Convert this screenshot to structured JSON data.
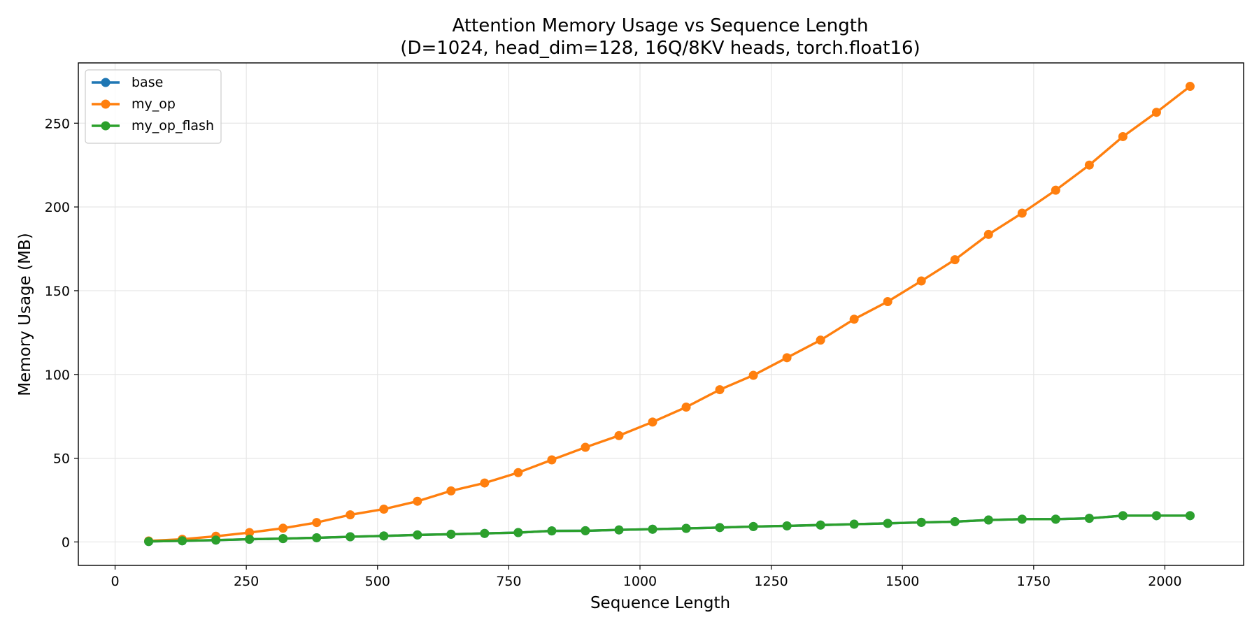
{
  "chart_data": {
    "type": "line",
    "title": "Attention Memory Usage vs Sequence Length",
    "subtitle": "(D=1024, head_dim=128, 16Q/8KV heads, torch.float16)",
    "xlabel": "Sequence Length",
    "ylabel": "Memory Usage (MB)",
    "xlim": [
      -70,
      2150
    ],
    "ylim": [
      -14,
      286
    ],
    "xticks": [
      0,
      250,
      500,
      750,
      1000,
      1250,
      1500,
      1750,
      2000
    ],
    "yticks": [
      0,
      50,
      100,
      150,
      200,
      250
    ],
    "grid": true,
    "legend_position": "top-left",
    "x": [
      64,
      128,
      192,
      256,
      320,
      384,
      448,
      512,
      576,
      640,
      704,
      768,
      832,
      896,
      960,
      1024,
      1088,
      1152,
      1216,
      1280,
      1344,
      1408,
      1472,
      1536,
      1600,
      1664,
      1728,
      1792,
      1856,
      1920,
      1984,
      2048
    ],
    "series": [
      {
        "name": "base",
        "color": "#1f77b4",
        "values": [
          0.3,
          0.7,
          1.1,
          1.6,
          2.0,
          2.5,
          3.1,
          3.6,
          4.2,
          4.6,
          5.1,
          5.6,
          6.6,
          6.7,
          7.2,
          7.6,
          8.1,
          8.6,
          9.2,
          9.6,
          10.1,
          10.6,
          11.1,
          11.7,
          12.1,
          13.1,
          13.6,
          13.6,
          14.1,
          15.7,
          15.7,
          15.7
        ]
      },
      {
        "name": "my_op",
        "color": "#ff7f0e",
        "values": [
          0.6,
          1.6,
          3.4,
          5.6,
          8.2,
          11.6,
          16.2,
          19.6,
          24.3,
          30.5,
          35.2,
          41.4,
          49.0,
          56.5,
          63.5,
          71.6,
          80.5,
          90.9,
          99.5,
          110.0,
          120.5,
          133.0,
          143.5,
          155.8,
          168.5,
          183.6,
          196.3,
          210.0,
          225.0,
          242.0,
          256.5,
          272.0
        ]
      },
      {
        "name": "my_op_flash",
        "color": "#2ca02c",
        "values": [
          0.3,
          0.7,
          1.1,
          1.6,
          2.0,
          2.5,
          3.1,
          3.6,
          4.2,
          4.6,
          5.1,
          5.6,
          6.6,
          6.7,
          7.2,
          7.6,
          8.1,
          8.6,
          9.2,
          9.6,
          10.1,
          10.6,
          11.1,
          11.7,
          12.1,
          13.1,
          13.6,
          13.6,
          14.1,
          15.7,
          15.7,
          15.7
        ]
      }
    ]
  }
}
